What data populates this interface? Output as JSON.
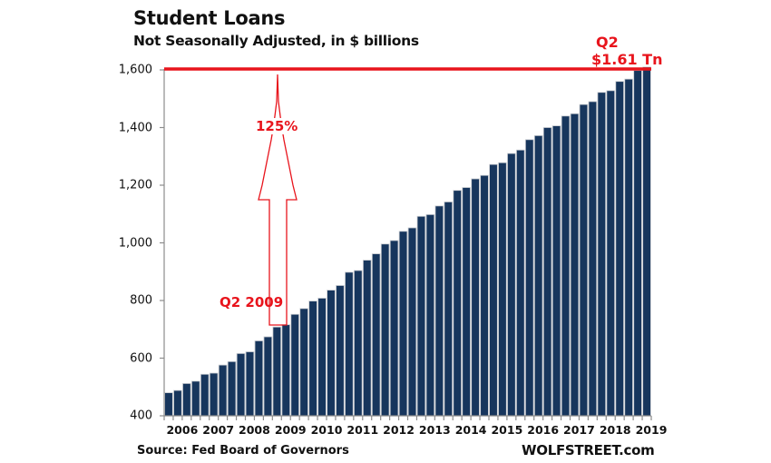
{
  "chart_data": {
    "type": "bar",
    "title": "Student Loans",
    "subtitle": "Not Seasonally Adjusted, in $ billions",
    "xlabel": "",
    "ylabel": "",
    "ylim": [
      400,
      1600
    ],
    "yticks": [
      "400",
      "600",
      "800",
      "1,000",
      "1,200",
      "1,400",
      "1,600"
    ],
    "xtick_labels": [
      "2006",
      "2007",
      "2008",
      "2009",
      "2010",
      "2011",
      "2012",
      "2013",
      "2014",
      "2015",
      "2016",
      "2017",
      "2018",
      "2019"
    ],
    "grid": false,
    "legend": null,
    "bar_color": "#17365d",
    "frequency": "quarterly",
    "period": "Q1 2006 - Q2 2019",
    "categories": [
      "2006Q1",
      "2006Q2",
      "2006Q3",
      "2006Q4",
      "2007Q1",
      "2007Q2",
      "2007Q3",
      "2007Q4",
      "2008Q1",
      "2008Q2",
      "2008Q3",
      "2008Q4",
      "2009Q1",
      "2009Q2",
      "2009Q3",
      "2009Q4",
      "2010Q1",
      "2010Q2",
      "2010Q3",
      "2010Q4",
      "2011Q1",
      "2011Q2",
      "2011Q3",
      "2011Q4",
      "2012Q1",
      "2012Q2",
      "2012Q3",
      "2012Q4",
      "2013Q1",
      "2013Q2",
      "2013Q3",
      "2013Q4",
      "2014Q1",
      "2014Q2",
      "2014Q3",
      "2014Q4",
      "2015Q1",
      "2015Q2",
      "2015Q3",
      "2015Q4",
      "2016Q1",
      "2016Q2",
      "2016Q3",
      "2016Q4",
      "2017Q1",
      "2017Q2",
      "2017Q3",
      "2017Q4",
      "2018Q1",
      "2018Q2",
      "2018Q3",
      "2018Q4",
      "2019Q1",
      "2019Q2"
    ],
    "values": [
      480,
      488,
      512,
      520,
      544,
      548,
      576,
      588,
      616,
      622,
      660,
      674,
      708,
      716,
      752,
      772,
      798,
      808,
      836,
      852,
      898,
      904,
      940,
      962,
      996,
      1008,
      1040,
      1052,
      1092,
      1098,
      1128,
      1142,
      1182,
      1192,
      1222,
      1234,
      1272,
      1278,
      1310,
      1322,
      1358,
      1372,
      1400,
      1406,
      1440,
      1448,
      1480,
      1490,
      1522,
      1528,
      1560,
      1568,
      1598,
      1610
    ],
    "annotations": [
      {
        "text": "Q2",
        "role": "latest-period"
      },
      {
        "text": "$1.61 Tn",
        "role": "latest-value"
      },
      {
        "text": "125%",
        "role": "growth-arrow-label"
      },
      {
        "text": "Q2 2009",
        "role": "baseline-period"
      }
    ],
    "reference_line": {
      "value": 1610,
      "color": "#e8141c"
    }
  },
  "labels": {
    "title": "Student Loans",
    "subtitle": "Not Seasonally Adjusted, in $ billions",
    "source": "Source: Fed Board of Governors",
    "brand": "WOLFSTREET.com",
    "ann_q2": "Q2",
    "ann_value": "$1.61 Tn",
    "ann_pct": "125%",
    "ann_base": "Q2 2009"
  },
  "colors": {
    "bar": "#17365d",
    "bar_edge": "#c9ccd1",
    "accent_red": "#e8141c",
    "axis": "#8c8c8c",
    "text": "#111111"
  }
}
